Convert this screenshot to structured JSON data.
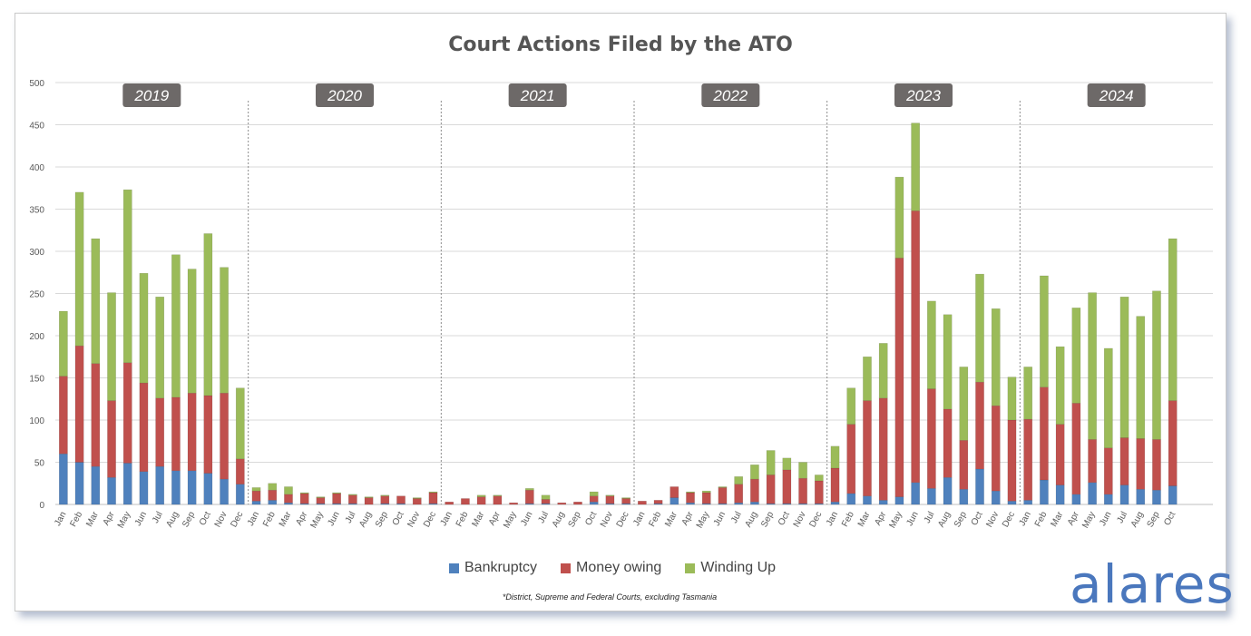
{
  "chart_data": {
    "type": "bar",
    "stacked": true,
    "title": "Court Actions Filed by the ATO",
    "footnote": "*District, Supreme and Federal Courts, excluding Tasmania",
    "brand": "alares",
    "ylim": [
      0,
      500
    ],
    "yticks": [
      0,
      50,
      100,
      150,
      200,
      250,
      300,
      350,
      400,
      450,
      500
    ],
    "grid": true,
    "legend_position": "bottom",
    "years": [
      "2019",
      "2020",
      "2021",
      "2022",
      "2023",
      "2024"
    ],
    "months_per_year": [
      12,
      12,
      12,
      12,
      12,
      10
    ],
    "categories": [
      "Jan",
      "Feb",
      "Mar",
      "Apr",
      "May",
      "Jun",
      "Jul",
      "Aug",
      "Sep",
      "Oct",
      "Nov",
      "Dec",
      "Jan",
      "Feb",
      "Mar",
      "Apr",
      "May",
      "Jun",
      "Jul",
      "Aug",
      "Sep",
      "Oct",
      "Nov",
      "Dec",
      "Jan",
      "Feb",
      "Mar",
      "Apr",
      "May",
      "Jun",
      "Jul",
      "Aug",
      "Sep",
      "Oct",
      "Nov",
      "Dec",
      "Jan",
      "Feb",
      "Mar",
      "Apr",
      "May",
      "Jun",
      "Jul",
      "Aug",
      "Sep",
      "Oct",
      "Nov",
      "Dec",
      "Jan",
      "Feb",
      "Mar",
      "Apr",
      "May",
      "Jun",
      "Jul",
      "Aug",
      "Sep",
      "Oct",
      "Nov",
      "Dec",
      "Jan",
      "Feb",
      "Mar",
      "Apr",
      "May",
      "Jun",
      "Jul",
      "Aug",
      "Sep",
      "Oct"
    ],
    "series": [
      {
        "name": "Bankruptcy",
        "color": "#4f81bd",
        "values": [
          60,
          50,
          45,
          32,
          49,
          39,
          45,
          40,
          40,
          37,
          30,
          24,
          4,
          5,
          2,
          1,
          1,
          1,
          1,
          0,
          1,
          1,
          0,
          1,
          0,
          0,
          0,
          0,
          0,
          1,
          1,
          0,
          0,
          3,
          1,
          1,
          0,
          1,
          8,
          2,
          1,
          1,
          2,
          3,
          1,
          1,
          1,
          1,
          3,
          13,
          10,
          5,
          9,
          26,
          19,
          32,
          18,
          42,
          16,
          4,
          5,
          29,
          23,
          12,
          26,
          12,
          23,
          18,
          17,
          22
        ]
      },
      {
        "name": "Money owing",
        "color": "#c0504d",
        "values": [
          92,
          138,
          122,
          91,
          119,
          105,
          81,
          87,
          92,
          92,
          102,
          30,
          12,
          12,
          10,
          12,
          7,
          12,
          10,
          8,
          9,
          9,
          7,
          13,
          3,
          7,
          9,
          10,
          2,
          16,
          5,
          2,
          3,
          7,
          9,
          6,
          4,
          4,
          13,
          12,
          13,
          19,
          22,
          27,
          34,
          40,
          30,
          27,
          40,
          82,
          113,
          121,
          283,
          322,
          118,
          81,
          58,
          103,
          101,
          96,
          96,
          110,
          72,
          108,
          51,
          55,
          56,
          60,
          60,
          101
        ]
      },
      {
        "name": "Winding Up",
        "color": "#9bbb59",
        "values": [
          77,
          182,
          148,
          128,
          205,
          130,
          120,
          169,
          147,
          192,
          149,
          84,
          4,
          8,
          9,
          1,
          1,
          1,
          1,
          1,
          1,
          0,
          1,
          1,
          0,
          0,
          2,
          1,
          0,
          2,
          5,
          0,
          0,
          5,
          1,
          1,
          0,
          0,
          0,
          1,
          2,
          1,
          9,
          17,
          29,
          14,
          19,
          7,
          26,
          43,
          52,
          65,
          96,
          104,
          104,
          112,
          87,
          128,
          115,
          51,
          62,
          132,
          92,
          113,
          174,
          118,
          167,
          145,
          176,
          192
        ]
      }
    ]
  }
}
